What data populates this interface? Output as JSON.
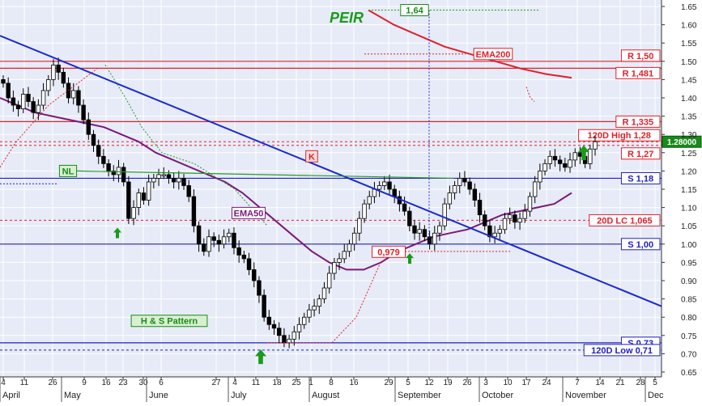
{
  "chart_data": {
    "type": "candlestick",
    "title": "PEIR",
    "ylim": [
      0.62,
      1.67
    ],
    "y_ticks": [
      "1.65",
      "1.60",
      "1.55",
      "1.50",
      "1.45",
      "1.40",
      "1.35",
      "1.30",
      "1.25",
      "1.20",
      "1.15",
      "1.10",
      "1.05",
      "1.00",
      "0.95",
      "0.90",
      "0.85",
      "0.80",
      "0.75",
      "0.70",
      "0.65"
    ],
    "x_day_ticks": [
      "4",
      "11",
      "26",
      "9",
      "16",
      "23",
      "30",
      "6",
      "27",
      "4",
      "11",
      "18",
      "25",
      "1",
      "8",
      "16",
      "29",
      "5",
      "12",
      "19",
      "26",
      "3",
      "10",
      "17",
      "24",
      "7",
      "14",
      "21",
      "28",
      "5"
    ],
    "x_month_labels": [
      "April",
      "May",
      "June",
      "July",
      "August",
      "September",
      "October",
      "November",
      "Dec"
    ],
    "horizontal_levels": [
      {
        "label": "R 1,50",
        "value": 1.5
      },
      {
        "label": "R 1,481",
        "value": 1.481
      },
      {
        "label": "R 1,335",
        "value": 1.335
      },
      {
        "label": "120D High 1,28",
        "value": 1.28
      },
      {
        "label": "R 1,27",
        "value": 1.27
      },
      {
        "label": "S 1,18",
        "value": 1.18
      },
      {
        "label": "20D LC 1,065",
        "value": 1.065
      },
      {
        "label": "S 1,00",
        "value": 1.0
      },
      {
        "label": "S 0,73",
        "value": 0.73
      },
      {
        "label": "120D Low 0,71",
        "value": 0.71
      }
    ],
    "last_price_label": "1.28000",
    "annotations": {
      "ema200": "EMA200",
      "ema50": "EMA50",
      "neckline": "NL",
      "k_marker": "K",
      "pattern": "H & S Pattern",
      "peak_value": "1,64",
      "low_value": "0,979"
    },
    "candles_close": [
      1.44,
      1.4,
      1.38,
      1.37,
      1.41,
      1.39,
      1.36,
      1.38,
      1.42,
      1.45,
      1.49,
      1.47,
      1.44,
      1.4,
      1.42,
      1.38,
      1.34,
      1.3,
      1.27,
      1.24,
      1.22,
      1.2,
      1.19,
      1.21,
      1.17,
      1.07,
      1.1,
      1.14,
      1.12,
      1.17,
      1.18,
      1.19,
      1.19,
      1.18,
      1.17,
      1.18,
      1.16,
      1.13,
      1.05,
      1.0,
      0.98,
      1.02,
      1.01,
      1.0,
      1.02,
      1.03,
      0.99,
      0.97,
      0.96,
      0.93,
      0.9,
      0.86,
      0.8,
      0.78,
      0.77,
      0.75,
      0.73,
      0.74,
      0.76,
      0.78,
      0.8,
      0.82,
      0.83,
      0.85,
      0.88,
      0.92,
      0.95,
      0.96,
      0.98,
      1.0,
      1.03,
      1.07,
      1.11,
      1.13,
      1.15,
      1.16,
      1.17,
      1.15,
      1.13,
      1.11,
      1.09,
      1.05,
      1.03,
      1.04,
      1.02,
      1.0,
      1.03,
      1.05,
      1.11,
      1.14,
      1.16,
      1.18,
      1.17,
      1.15,
      1.12,
      1.08,
      1.05,
      1.02,
      1.03,
      1.04,
      1.07,
      1.08,
      1.06,
      1.07,
      1.09,
      1.13,
      1.17,
      1.2,
      1.22,
      1.24,
      1.23,
      1.22,
      1.21,
      1.23,
      1.25,
      1.24,
      1.22,
      1.26,
      1.28
    ],
    "ema50_values": [
      1.4,
      1.38,
      1.36,
      1.35,
      1.34,
      1.33,
      1.32,
      1.3,
      1.28,
      1.25,
      1.23,
      1.21,
      1.19,
      1.17,
      1.14,
      1.1,
      1.06,
      1.02,
      0.98,
      0.95,
      0.93,
      0.93,
      0.95,
      0.98,
      1.0,
      1.02,
      1.03,
      1.04,
      1.06,
      1.08,
      1.09,
      1.1,
      1.11,
      1.14
    ],
    "ema200_values": [
      1.64,
      1.6,
      1.57,
      1.54,
      1.52,
      1.5,
      1.48,
      1.465,
      1.455
    ]
  }
}
